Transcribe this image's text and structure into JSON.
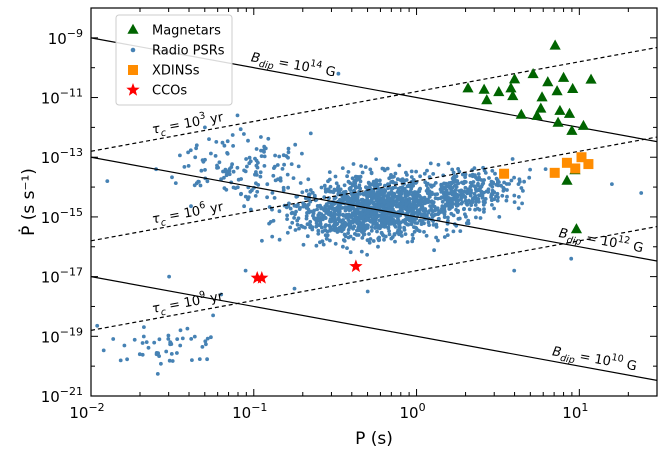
{
  "chart_data": {
    "type": "scatter",
    "xlabel": "P (s)",
    "ylabel": "Ṗ (s s⁻¹)",
    "x_scale": "log",
    "y_scale": "log",
    "xlim": [
      0.01,
      30
    ],
    "ylim": [
      1e-21,
      1e-08
    ],
    "x_ticks": [
      {
        "value": 0.01,
        "base": "10",
        "exp": "−2"
      },
      {
        "value": 0.1,
        "base": "10",
        "exp": "−1"
      },
      {
        "value": 1,
        "base": "10",
        "exp": "0"
      },
      {
        "value": 10,
        "base": "10",
        "exp": "1"
      }
    ],
    "y_ticks": [
      {
        "value": 1e-09,
        "base": "10",
        "exp": "−9"
      },
      {
        "value": 1e-11,
        "base": "10",
        "exp": "−11"
      },
      {
        "value": 1e-13,
        "base": "10",
        "exp": "−13"
      },
      {
        "value": 1e-15,
        "base": "10",
        "exp": "−15"
      },
      {
        "value": 1e-17,
        "base": "10",
        "exp": "−17"
      },
      {
        "value": 1e-19,
        "base": "10",
        "exp": "−19"
      },
      {
        "value": 1e-21,
        "base": "10",
        "exp": "−21"
      }
    ],
    "grid": false,
    "legend_position": "top-left",
    "series": [
      {
        "name": "Magnetars",
        "marker": "triangle",
        "color": "#006400",
        "points": [
          [
            2.07,
            2e-11
          ],
          [
            2.6,
            1.8e-11
          ],
          [
            2.7,
            8e-12
          ],
          [
            3.2,
            1.5e-11
          ],
          [
            3.8,
            2e-11
          ],
          [
            3.9,
            1.1e-11
          ],
          [
            4.0,
            4e-11
          ],
          [
            4.4,
            2.6e-12
          ],
          [
            5.2,
            6e-11
          ],
          [
            5.5,
            2.4e-12
          ],
          [
            5.8,
            4.2e-12
          ],
          [
            5.9,
            1e-11
          ],
          [
            6.4,
            3.2e-11
          ],
          [
            7.1,
            5.4e-10
          ],
          [
            7.3,
            1.6e-11
          ],
          [
            7.4,
            1.4e-12
          ],
          [
            7.6,
            3.5e-12
          ],
          [
            8.0,
            4.5e-11
          ],
          [
            8.7,
            2.8e-12
          ],
          [
            9.0,
            7.5e-13
          ],
          [
            9.1,
            1.9e-11
          ],
          [
            10.6,
            1.1e-12
          ],
          [
            11.8,
            3.9e-11
          ],
          [
            8.4,
            1.6e-14
          ],
          [
            9.4,
            3.6e-14
          ],
          [
            9.6,
            3.8e-16
          ]
        ]
      },
      {
        "name": "Radio PSRs",
        "marker": "dot",
        "color": "#4682b4",
        "points": []
      },
      {
        "name": "XDINSs",
        "marker": "square",
        "color": "#ff8c00",
        "points": [
          [
            3.45,
            2.8e-14
          ],
          [
            7.06,
            3e-14
          ],
          [
            8.39,
            6.5e-14
          ],
          [
            9.44,
            4.2e-14
          ],
          [
            10.31,
            1e-13
          ],
          [
            11.37,
            5.9e-14
          ]
        ]
      },
      {
        "name": "CCOs",
        "marker": "star",
        "color": "#ff0000",
        "points": [
          [
            0.105,
            9e-18
          ],
          [
            0.112,
            9e-18
          ],
          [
            0.424,
            2.2e-17
          ]
        ]
      }
    ],
    "reference_lines": [
      {
        "kind": "B",
        "style": "solid",
        "value": "10^14",
        "label_base": "B",
        "label_sub": "dip",
        "label_mid": " = 10",
        "label_sup": "14",
        "label_unit": " G"
      },
      {
        "kind": "B",
        "style": "solid",
        "value": "10^12",
        "label_base": "B",
        "label_sub": "dip",
        "label_mid": " = 10",
        "label_sup": "12",
        "label_unit": " G"
      },
      {
        "kind": "B",
        "style": "solid",
        "value": "10^10",
        "label_base": "B",
        "label_sub": "dip",
        "label_mid": " = 10",
        "label_sup": "10",
        "label_unit": " G"
      },
      {
        "kind": "tau",
        "style": "dashed",
        "value": "10^3",
        "label_base": "τ",
        "label_sub": "c",
        "label_mid": " = 10",
        "label_sup": "3",
        "label_unit": " yr"
      },
      {
        "kind": "tau",
        "style": "dashed",
        "value": "10^6",
        "label_base": "τ",
        "label_sub": "c",
        "label_mid": " = 10",
        "label_sup": "6",
        "label_unit": " yr"
      },
      {
        "kind": "tau",
        "style": "dashed",
        "value": "10^9",
        "label_base": "τ",
        "label_sub": "c",
        "label_mid": " = 10",
        "label_sup": "9",
        "label_unit": " yr"
      }
    ]
  }
}
